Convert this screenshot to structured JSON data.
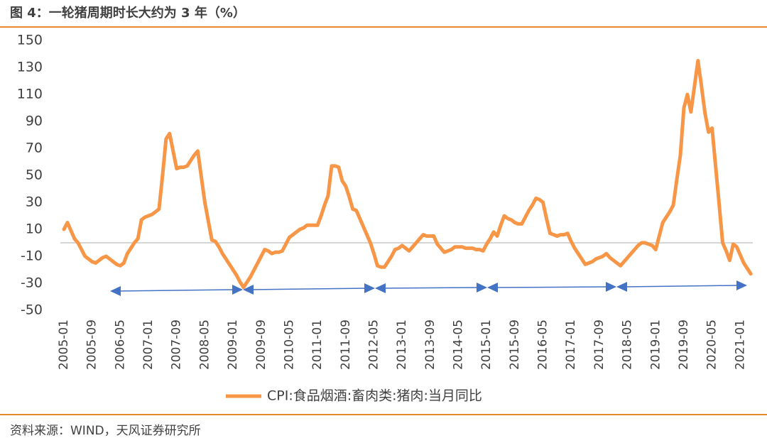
{
  "chart_data": {
    "type": "line",
    "title": "图 4：一轮猪周期时长大约为 3 年（%）",
    "source": "资料来源：WIND，天风证券研究所",
    "categories": [
      "2005-01",
      null,
      null,
      null,
      null,
      null,
      null,
      null,
      "2005-09",
      null,
      null,
      null,
      null,
      null,
      null,
      null,
      "2006-05",
      null,
      null,
      null,
      null,
      null,
      null,
      null,
      "2007-01",
      null,
      null,
      null,
      null,
      null,
      null,
      null,
      "2007-09",
      null,
      null,
      null,
      null,
      null,
      null,
      null,
      "2008-05",
      null,
      null,
      null,
      null,
      null,
      null,
      null,
      "2009-01",
      null,
      null,
      null,
      null,
      null,
      null,
      null,
      "2009-09",
      null,
      null,
      null,
      null,
      null,
      null,
      null,
      "2010-05",
      null,
      null,
      null,
      null,
      null,
      null,
      null,
      "2011-01",
      null,
      null,
      null,
      null,
      null,
      null,
      null,
      "2011-09",
      null,
      null,
      null,
      null,
      null,
      null,
      null,
      "2012-05",
      null,
      null,
      null,
      null,
      null,
      null,
      null,
      "2013-01",
      null,
      null,
      null,
      null,
      null,
      null,
      null,
      "2013-09",
      null,
      null,
      null,
      null,
      null,
      null,
      null,
      "2014-05",
      null,
      null,
      null,
      null,
      null,
      null,
      null,
      "2015-01",
      null,
      null,
      null,
      null,
      null,
      null,
      null,
      "2015-09",
      null,
      null,
      null,
      null,
      null,
      null,
      null,
      "2016-05",
      null,
      null,
      null,
      null,
      null,
      null,
      null,
      "2017-01",
      null,
      null,
      null,
      null,
      null,
      null,
      null,
      "2017-09",
      null,
      null,
      null,
      null,
      null,
      null,
      null,
      "2018-05",
      null,
      null,
      null,
      null,
      null,
      null,
      null,
      "2019-01",
      null,
      null,
      null,
      null,
      null,
      null,
      null,
      "2019-09",
      null,
      null,
      null,
      null,
      null,
      null,
      null,
      "2020-05",
      null,
      null,
      null,
      null,
      null,
      null,
      null,
      "2021-01",
      null,
      null,
      null
    ],
    "series": [
      {
        "name": "CPI:食品烟酒:畜肉类:猪肉:当月同比",
        "color": "#f79646",
        "values": [
          10,
          15,
          9,
          3,
          0,
          -5,
          -10,
          -12,
          -14,
          -15,
          -13,
          -11,
          -10,
          -12,
          -14,
          -16,
          -17,
          -15,
          -8,
          -4,
          0,
          3,
          17,
          19,
          20,
          21,
          23,
          25,
          50,
          77,
          81,
          68,
          55,
          56,
          56,
          57,
          61,
          65,
          68,
          49,
          30,
          16,
          2,
          1,
          -3,
          -8,
          -12,
          -16,
          -20,
          -24,
          -29,
          -33,
          -29,
          -25,
          -20,
          -15,
          -10,
          -5,
          -6,
          -8,
          -7,
          -7,
          -6,
          -1,
          4,
          6,
          8,
          10,
          11,
          13,
          13,
          13,
          13,
          20,
          28,
          35,
          57,
          57,
          56,
          46,
          42,
          34,
          25,
          24,
          18,
          12,
          6,
          0,
          -8,
          -17,
          -18,
          -18,
          -14,
          -10,
          -5,
          -4,
          -2,
          -4,
          -6,
          -3,
          0,
          3,
          6,
          5,
          5,
          5,
          -1,
          -4,
          -7,
          -6,
          -5,
          -3,
          -3,
          -3,
          -4,
          -4,
          -4,
          -5,
          -5,
          -6,
          -1,
          3,
          8,
          5,
          13,
          20,
          18,
          17,
          15,
          14,
          14,
          19,
          24,
          28,
          33,
          32,
          30,
          18,
          7,
          6,
          5,
          6,
          6,
          7,
          1,
          -4,
          -8,
          -12,
          -16,
          -15,
          -14,
          -12,
          -11,
          -10,
          -8,
          -11,
          -13,
          -15,
          -17,
          -14,
          -11,
          -8,
          -5,
          -2,
          0,
          0,
          -1,
          -2,
          -5,
          5,
          15,
          19,
          23,
          28,
          47,
          65,
          100,
          110,
          97,
          116,
          135,
          116,
          96,
          82,
          85,
          57,
          29,
          0,
          -6,
          -13,
          -1,
          -3,
          -9,
          -15,
          -19,
          -23
        ]
      }
    ],
    "ylim": [
      -50,
      150
    ],
    "yticks": [
      -50,
      -30,
      -10,
      10,
      30,
      50,
      70,
      90,
      110,
      130,
      150
    ],
    "grid": false
  }
}
